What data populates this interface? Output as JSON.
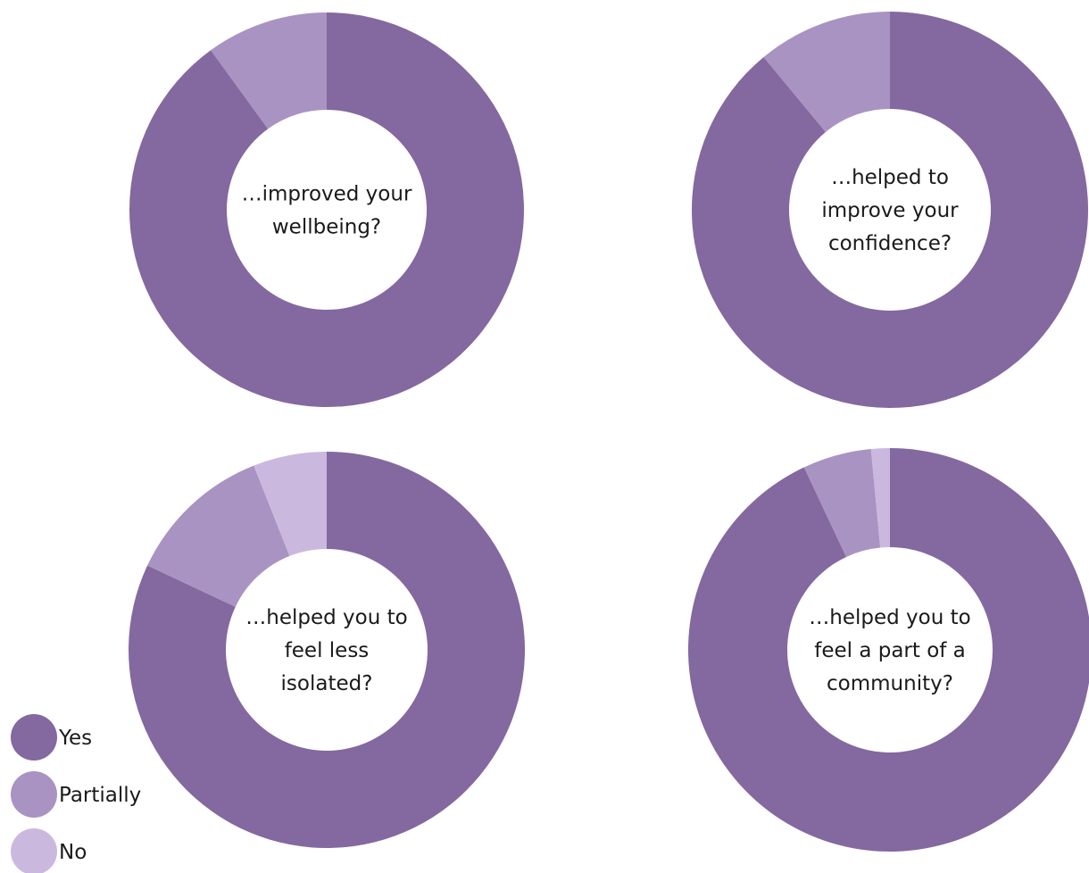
{
  "chart_data": [
    {
      "type": "pie",
      "title": "…improved your wellbeing?",
      "title_lines": [
        "…improved your",
        "wellbeing?"
      ],
      "categories": [
        "Yes",
        "Partially",
        "No"
      ],
      "values": [
        90,
        10,
        0
      ]
    },
    {
      "type": "pie",
      "title": "…helped to improve your confidence?",
      "title_lines": [
        "…helped to",
        "improve your",
        "confidence?"
      ],
      "categories": [
        "Yes",
        "Partially",
        "No"
      ],
      "values": [
        89,
        11,
        0
      ]
    },
    {
      "type": "pie",
      "title": "…helped you to feel less isolated?",
      "title_lines": [
        "…helped you to",
        "feel less",
        "isolated?"
      ],
      "categories": [
        "Yes",
        "Partially",
        "No"
      ],
      "values": [
        82,
        12,
        6
      ]
    },
    {
      "type": "pie",
      "title": "…helped you to feel a part of a community?",
      "title_lines": [
        "…helped you to",
        "feel a part of a",
        "community?"
      ],
      "categories": [
        "Yes",
        "Partially",
        "No"
      ],
      "values": [
        93,
        5.5,
        1.5
      ]
    }
  ],
  "legend": {
    "position": "bottom-left",
    "items": [
      {
        "label": "Yes",
        "color": "#8468a0"
      },
      {
        "label": "Partially",
        "color": "#a993c2"
      },
      {
        "label": "No",
        "color": "#cbb8df"
      }
    ]
  }
}
